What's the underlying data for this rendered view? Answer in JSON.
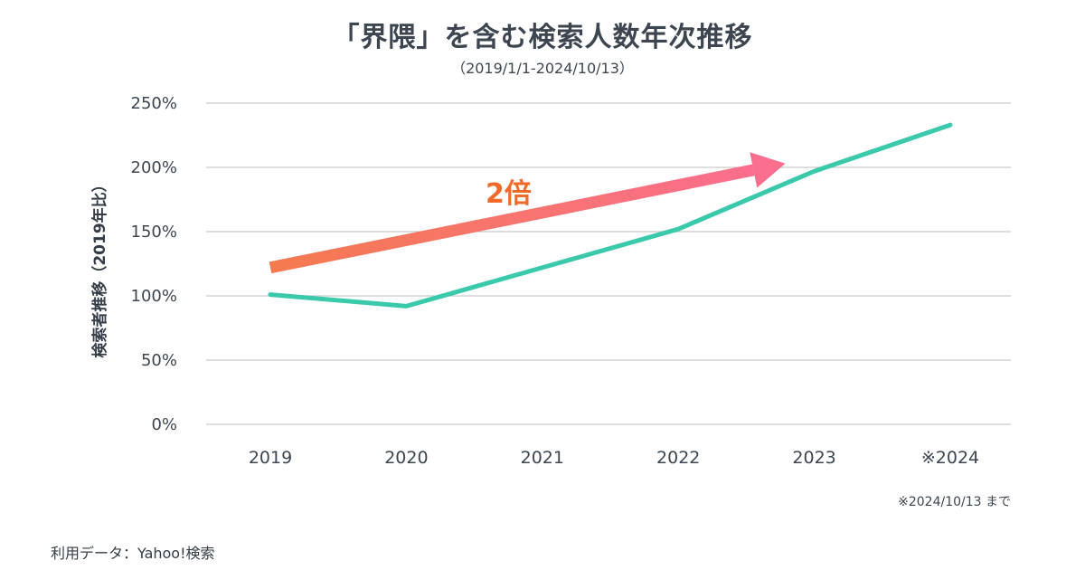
{
  "chart_data": {
    "type": "line",
    "title": "「界隈」を含む検索人数年次推移",
    "subtitle": "（2019/1/1-2024/10/13）",
    "ylabel": "検索者推移（2019年比）",
    "xlabel": "",
    "categories": [
      "2019",
      "2020",
      "2021",
      "2022",
      "2023",
      "2024"
    ],
    "x_tick_labels": [
      "2019",
      "2020",
      "2021",
      "2022",
      "2023",
      "※2024"
    ],
    "ylim": [
      0,
      250
    ],
    "y_ticks": [
      0,
      50,
      100,
      150,
      200,
      250
    ],
    "y_tick_labels": [
      "0%",
      "50%",
      "100%",
      "150%",
      "200%",
      "250%"
    ],
    "grid": true,
    "series": [
      {
        "values": [
          101,
          92,
          122,
          152,
          197,
          233
        ],
        "color": "#3ac9aa"
      }
    ],
    "annotation": {
      "text": "2倍",
      "arrow_from": {
        "x": "2019",
        "y": 122
      },
      "arrow_to": {
        "x": "2023",
        "y": 203
      },
      "arrow_color_start": "#f57a4f",
      "arrow_color_end": "#fa6e8e",
      "text_color": "#f06a2a"
    },
    "footnote": "※2024/10/13 まで"
  },
  "source": "利用データ：Yahoo!検索",
  "colors": {
    "line": "#3ac9aa",
    "grid": "#c9c9c9",
    "text": "#3d4650"
  }
}
